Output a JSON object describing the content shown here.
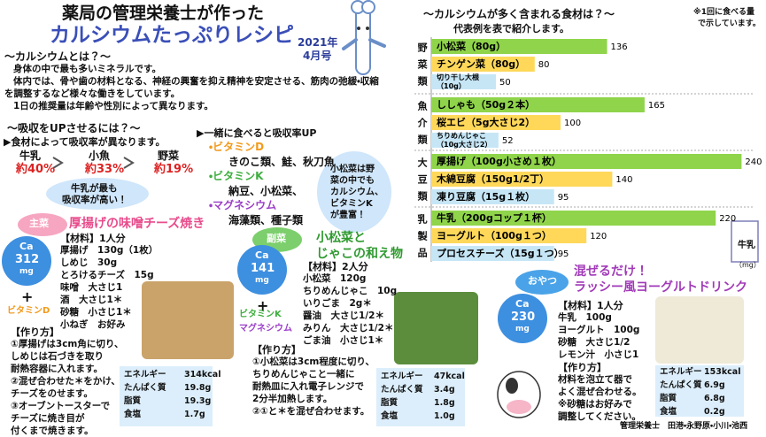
{
  "header": {
    "title_line1": "薬局の管理栄養士が作った",
    "title_line2": "カルシウムたっぷりレシピ",
    "date_year": "2021年",
    "date_month": "4月号"
  },
  "intro": {
    "heading": "～カルシウムとは？～",
    "lines": [
      "身体の中で最も多いミネラルです。",
      "体内では、骨や歯の材料となる、神経の興奮を抑え精神を安定させる、筋肉の弛緩・収縮",
      "を調整するなど様々な働きをしています。",
      "1日の推奨量は年齢や性別によって異なります。"
    ]
  },
  "absorption": {
    "heading": "～吸収をUPさせるには？～",
    "note": "▶食材によって吸収率が異なります。",
    "items": [
      {
        "name": "牛乳",
        "rate": "約40%"
      },
      {
        "name": "小魚",
        "rate": "約33%"
      },
      {
        "name": "野菜",
        "rate": "約19%"
      }
    ],
    "bubble": [
      "牛乳が最も",
      "吸収率が高い！"
    ]
  },
  "combo": {
    "heading": "▶一緒に食べると吸収率UP",
    "groups": [
      {
        "nutrient": "・ビタミンD",
        "foods": "きのこ類、鮭、秋刀魚"
      },
      {
        "nutrient": "・ビタミンK",
        "foods": "納豆、小松菜、"
      },
      {
        "nutrient": "・マグネシウム",
        "foods": "海藻類、種子類"
      }
    ],
    "bubble": [
      "小松菜は野",
      "菜の中でも",
      "カルシウム、",
      "ビタミンK",
      "が豊富！"
    ]
  },
  "chart": {
    "heading": "～カルシウムが多く含まれる食材は？～",
    "subheading": "代表例を表で紹介します。",
    "note": [
      "※1回に食べる量",
      "で示しています。"
    ],
    "unit": "（mg）",
    "xlim": [
      0,
      250
    ],
    "colors": [
      "#8fd44a",
      "#ffd85a",
      "#c6e6f6"
    ],
    "groups": [
      {
        "label": "野菜類",
        "items": [
          {
            "lines": [
              "小松菜（80g）"
            ],
            "value": 136
          },
          {
            "lines": [
              "チンゲン菜（80g）"
            ],
            "value": 80
          },
          {
            "lines": [
              "切り干し大根",
              "（10g）"
            ],
            "value": 50
          }
        ]
      },
      {
        "label": "魚介類",
        "items": [
          {
            "lines": [
              "ししゃも（50g２本）"
            ],
            "value": 165
          },
          {
            "lines": [
              "桜エビ（5g大さじ2）"
            ],
            "value": 100
          },
          {
            "lines": [
              "ちりめんじゃこ",
              "（10g大さじ2）"
            ],
            "value": 52
          }
        ]
      },
      {
        "label": "大豆類",
        "items": [
          {
            "lines": [
              "厚揚げ（100g小さめ１枚）"
            ],
            "value": 240
          },
          {
            "lines": [
              "木綿豆腐（150g1/2丁）"
            ],
            "value": 140
          },
          {
            "lines": [
              "凍り豆腐（15g１枚）"
            ],
            "value": 95
          }
        ]
      },
      {
        "label": "乳製品",
        "items": [
          {
            "lines": [
              "牛乳（200gコップ１杯）"
            ],
            "value": 220
          },
          {
            "lines": [
              "ヨーグルト（100g１つ）"
            ],
            "value": 120
          },
          {
            "lines": [
              "プロセスチーズ（15g１つ）"
            ],
            "value": 95
          }
        ]
      }
    ]
  },
  "recipes": [
    {
      "tag": "主菜",
      "title": [
        "厚揚げの味噌チーズ焼き"
      ],
      "ca_label": "Ca",
      "ca_value": 312,
      "ca_unit": "mg",
      "plus": "+",
      "nutrients": [
        "ビタミンD"
      ],
      "materials_heading": "【材料】1人分",
      "materials": [
        "厚揚げ　130g（1枚）",
        "しめじ　30g",
        "とろけるチーズ　15g",
        "味噌　大さじ1",
        "酒　大さじ1＊",
        "砂糖　小さじ1＊",
        "小ねぎ　お好み"
      ],
      "steps_heading": "【作り方】",
      "steps": [
        "①厚揚げは3cm角に切り、",
        "しめじは石づきを取り",
        "耐熱容器に入れます。",
        "②混ぜ合わせた＊をかけ、",
        "チーズをのせます。",
        "③オーブントースターで",
        "チーズに焼き目が",
        "付くまで焼きます。"
      ],
      "nutrition": [
        [
          "エネルギー",
          "314kcal"
        ],
        [
          "たんぱく質",
          "19.8g"
        ],
        [
          "脂質",
          "19.3g"
        ],
        [
          "食塩",
          "1.7g"
        ]
      ]
    },
    {
      "tag": "副菜",
      "title": [
        "小松菜と",
        "じゃこの和え物"
      ],
      "ca_label": "Ca",
      "ca_value": 141,
      "ca_unit": "mg",
      "plus": "+",
      "nutrients": [
        "ビタミンK",
        "マグネシウム"
      ],
      "materials_heading": "【材料】2人分",
      "materials": [
        "小松菜　120g",
        "ちりめんじゃこ　10g",
        "いりごま　2g＊",
        "醤油　大さじ1/2＊",
        "みりん　大さじ1/2＊",
        "ごま油　小さじ1＊"
      ],
      "steps_heading": "【作り方】",
      "steps": [
        "①小松菜は3cm程度に切り、",
        "ちりめんじゃこと一緒に",
        "耐熱皿に入れ電子レンジで",
        "2分半加熱します。",
        "②①と＊を混ぜ合わせます。"
      ],
      "nutrition": [
        [
          "エネルギー",
          "47kcal"
        ],
        [
          "たんぱく質",
          "3.4g"
        ],
        [
          "脂質",
          "1.8g"
        ],
        [
          "食塩",
          "1.0g"
        ]
      ]
    },
    {
      "tag": "おやつ",
      "title": [
        "混ぜるだけ！",
        "ラッシー風ヨーグルトドリンク"
      ],
      "ca_label": "Ca",
      "ca_value": 230,
      "ca_unit": "mg",
      "materials_heading": "【材料】1人分",
      "materials": [
        "牛乳　100g",
        "ヨーグルト　100g",
        "砂糖　大さじ1/2",
        "レモン汁　小さじ1"
      ],
      "steps_heading": "【作り方】",
      "steps": [
        "材料を泡立て器で",
        "よく混ぜ合わせる。",
        "※砂糖はお好みで",
        "調整してください。"
      ],
      "nutrition": [
        [
          "エネルギー",
          "153kcal"
        ],
        [
          "たんぱく質",
          "6.9g"
        ],
        [
          "脂質",
          "6.8g"
        ],
        [
          "食塩",
          "0.2g"
        ]
      ]
    }
  ],
  "milk_label": "牛乳",
  "footer": "管理栄養士　田港・永野原・小川・池西"
}
